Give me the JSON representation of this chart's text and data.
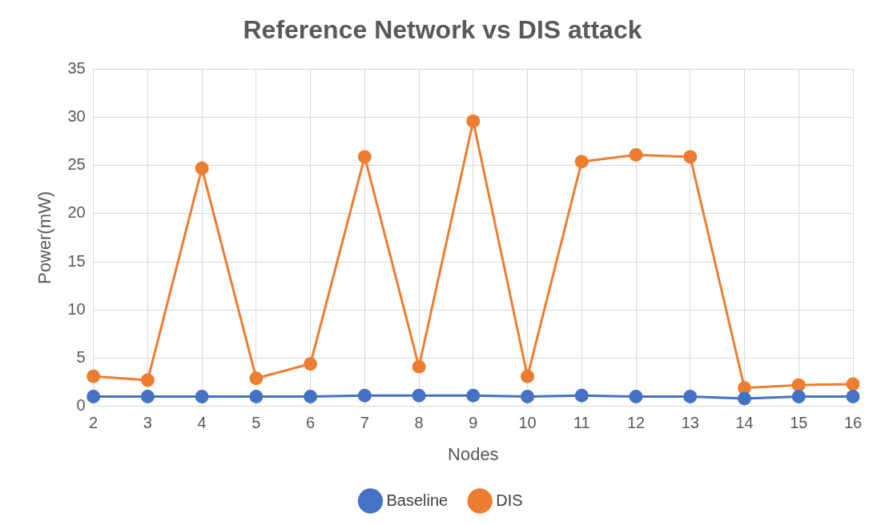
{
  "chart_data": {
    "type": "line",
    "title": "Reference Network vs DIS attack",
    "xlabel": "Nodes",
    "ylabel": "Power(mW)",
    "categories": [
      "2",
      "3",
      "4",
      "5",
      "6",
      "7",
      "8",
      "9",
      "10",
      "11",
      "12",
      "13",
      "14",
      "15",
      "16"
    ],
    "series": [
      {
        "name": "Baseline",
        "color": "#4472c4",
        "values": [
          1.0,
          1.0,
          1.0,
          1.0,
          1.0,
          1.1,
          1.1,
          1.1,
          1.0,
          1.1,
          1.0,
          1.0,
          0.8,
          1.0,
          1.0
        ]
      },
      {
        "name": "DIS",
        "color": "#ed7d31",
        "values": [
          3.1,
          2.7,
          24.7,
          2.9,
          4.4,
          25.9,
          4.1,
          29.6,
          3.1,
          25.4,
          26.1,
          25.9,
          1.9,
          2.2,
          2.3
        ]
      }
    ],
    "ylim": [
      0,
      35
    ],
    "yticks": [
      0,
      5,
      10,
      15,
      20,
      25,
      30,
      35
    ],
    "grid": true,
    "legend": "bottom",
    "marker": "circle",
    "line_style": "solid"
  }
}
